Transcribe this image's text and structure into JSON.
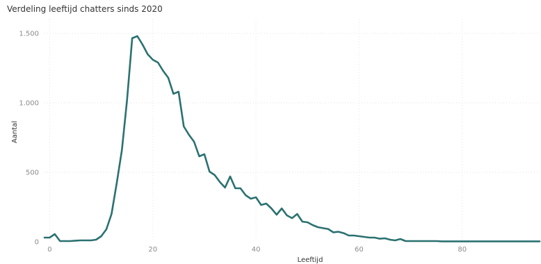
{
  "chart_data": {
    "type": "line",
    "title": "Verdeling leeftijd chatters sinds 2020",
    "xlabel": "Leeftijd",
    "ylabel": "Aantal",
    "xlim": [
      -1,
      95
    ],
    "ylim": [
      0,
      1600
    ],
    "x_ticks": [
      0,
      20,
      40,
      60,
      80
    ],
    "x_tick_labels": [
      "0",
      "20",
      "40",
      "60",
      "80"
    ],
    "y_ticks": [
      0,
      500,
      1000,
      1500
    ],
    "y_tick_labels": [
      "0",
      "500",
      "1.000",
      "1.500"
    ],
    "grid": "dotted",
    "legend": "none",
    "series": [
      {
        "color": "#2a7170",
        "x": [
          -1,
          0,
          1,
          2,
          3,
          4,
          5,
          6,
          7,
          8,
          9,
          10,
          11,
          12,
          13,
          14,
          15,
          16,
          17,
          18,
          19,
          20,
          21,
          22,
          23,
          24,
          25,
          26,
          27,
          28,
          29,
          30,
          31,
          32,
          33,
          34,
          35,
          36,
          37,
          38,
          39,
          40,
          41,
          42,
          43,
          44,
          45,
          46,
          47,
          48,
          49,
          50,
          51,
          52,
          53,
          54,
          55,
          56,
          57,
          58,
          59,
          60,
          61,
          62,
          63,
          64,
          65,
          66,
          67,
          68,
          69,
          70,
          71,
          72,
          73,
          74,
          75,
          76,
          77,
          78,
          79,
          80,
          81,
          82,
          83,
          84,
          85,
          86,
          87,
          88,
          89,
          90,
          91,
          92,
          93,
          94,
          95
        ],
        "y": [
          30,
          30,
          55,
          5,
          5,
          5,
          8,
          10,
          10,
          10,
          15,
          40,
          90,
          200,
          420,
          660,
          1020,
          1465,
          1480,
          1420,
          1350,
          1310,
          1290,
          1230,
          1180,
          1065,
          1080,
          830,
          770,
          720,
          615,
          630,
          505,
          480,
          430,
          390,
          470,
          385,
          385,
          335,
          310,
          320,
          265,
          275,
          240,
          195,
          240,
          190,
          170,
          200,
          145,
          140,
          120,
          105,
          98,
          92,
          68,
          72,
          62,
          45,
          45,
          40,
          35,
          30,
          30,
          22,
          25,
          15,
          10,
          20,
          5,
          5,
          5,
          5,
          5,
          5,
          5,
          3,
          3,
          3,
          3,
          3,
          3,
          3,
          3,
          3,
          3,
          3,
          3,
          3,
          3,
          3,
          3,
          3,
          3,
          3,
          3
        ]
      }
    ]
  }
}
